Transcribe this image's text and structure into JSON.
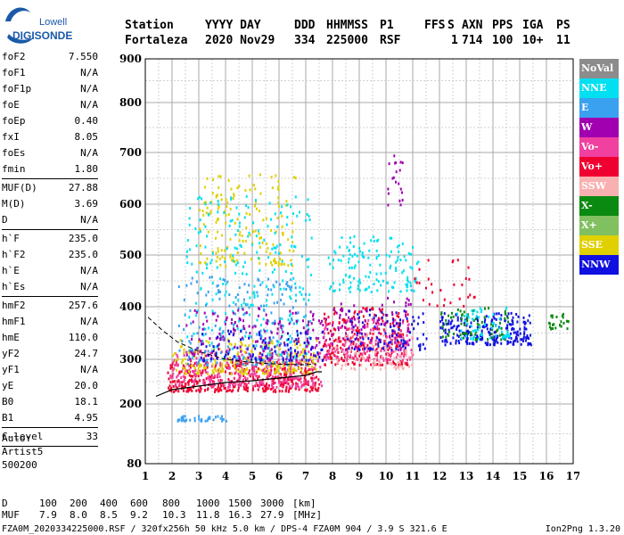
{
  "logo": {
    "line1": "Lowell",
    "line2": "DIGISONDE"
  },
  "header": {
    "row1": [
      "Station",
      "YYYY DAY",
      "DDD",
      "HHMMSS",
      "P1",
      "FFS",
      "S",
      "AXN",
      "PPS",
      "IGA",
      "PS"
    ],
    "row2": [
      "Fortaleza",
      "2020 Nov29",
      "334",
      "225000",
      "RSF",
      "1",
      "714",
      "100",
      "10+",
      "11"
    ]
  },
  "params": {
    "group1": [
      {
        "label": "foF2",
        "value": "7.550"
      },
      {
        "label": "foF1",
        "value": "N/A"
      },
      {
        "label": "foF1p",
        "value": "N/A"
      },
      {
        "label": "foE",
        "value": "N/A"
      },
      {
        "label": "foEp",
        "value": "0.40"
      },
      {
        "label": "fxI",
        "value": "8.05"
      },
      {
        "label": "foEs",
        "value": "N/A"
      },
      {
        "label": "fmin",
        "value": "1.80"
      }
    ],
    "group2": [
      {
        "label": "MUF(D)",
        "value": "27.88"
      },
      {
        "label": "M(D)",
        "value": "3.69"
      },
      {
        "label": "D",
        "value": "N/A"
      }
    ],
    "group3": [
      {
        "label": "h`F",
        "value": "235.0"
      },
      {
        "label": "h`F2",
        "value": "235.0"
      },
      {
        "label": "h`E",
        "value": "N/A"
      },
      {
        "label": "h`Es",
        "value": "N/A"
      }
    ],
    "group4": [
      {
        "label": "hmF2",
        "value": "257.6"
      },
      {
        "label": "hmF1",
        "value": "N/A"
      },
      {
        "label": "hmE",
        "value": "110.0"
      },
      {
        "label": "yF2",
        "value": "24.7"
      },
      {
        "label": "yF1",
        "value": "N/A"
      },
      {
        "label": "yE",
        "value": "20.0"
      },
      {
        "label": "B0",
        "value": "18.1"
      },
      {
        "label": "B1",
        "value": "4.95"
      }
    ],
    "group5": [
      {
        "label": "C-level",
        "value": "33"
      }
    ],
    "auto": [
      "Auto:",
      "Artist5",
      "500200"
    ]
  },
  "legend": [
    {
      "name": "NoVal",
      "color": "#8c8c8c"
    },
    {
      "name": "NNE",
      "color": "#00e0f0"
    },
    {
      "name": "E",
      "color": "#3aa0f0"
    },
    {
      "name": "W",
      "color": "#a000b0"
    },
    {
      "name": "Vo-",
      "color": "#f040a0"
    },
    {
      "name": "Vo+",
      "color": "#f00030"
    },
    {
      "name": "SSW",
      "color": "#f8b0b0"
    },
    {
      "name": "X-",
      "color": "#0a8a10"
    },
    {
      "name": "X+",
      "color": "#80c060"
    },
    {
      "name": "SSE",
      "color": "#e0d000"
    },
    {
      "name": "NNW",
      "color": "#1010e0"
    }
  ],
  "chart_data": {
    "type": "scatter",
    "title": "",
    "xlabel": "",
    "ylabel": "",
    "xlim": [
      1,
      17
    ],
    "ylim": [
      80,
      900
    ],
    "x_ticks": [
      "1",
      "2",
      "3",
      "4",
      "5",
      "6",
      "7",
      "8",
      "9",
      "10",
      "11",
      "12",
      "13",
      "14",
      "15",
      "16",
      "17"
    ],
    "y_ticks": [
      "80",
      "200",
      "300",
      "400",
      "500",
      "600",
      "700",
      "800",
      "900"
    ],
    "y_tick_values": [
      80,
      200,
      300,
      400,
      500,
      600,
      700,
      800,
      900
    ],
    "grid": true,
    "legend_position": "right",
    "clusters": [
      {
        "series": "Vo+",
        "x": [
          1.8,
          7.5
        ],
        "y": [
          230,
          300
        ],
        "density": 420
      },
      {
        "series": "Vo-",
        "x": [
          1.9,
          7.6
        ],
        "y": [
          240,
          320
        ],
        "density": 300
      },
      {
        "series": "SSE",
        "x": [
          2.0,
          7.4
        ],
        "y": [
          270,
          340
        ],
        "density": 220
      },
      {
        "series": "SSE",
        "x": [
          3.0,
          6.6
        ],
        "y": [
          480,
          660
        ],
        "density": 170
      },
      {
        "series": "NNE",
        "x": [
          2.5,
          7.2
        ],
        "y": [
          300,
          620
        ],
        "density": 260
      },
      {
        "series": "E",
        "x": [
          2.2,
          7.0
        ],
        "y": [
          290,
          460
        ],
        "density": 200
      },
      {
        "series": "W",
        "x": [
          2.5,
          7.8
        ],
        "y": [
          300,
          400
        ],
        "density": 180
      },
      {
        "series": "NNW",
        "x": [
          3.0,
          7.6
        ],
        "y": [
          300,
          360
        ],
        "density": 90
      },
      {
        "series": "NNE",
        "x": [
          7.8,
          11.2
        ],
        "y": [
          430,
          540
        ],
        "density": 140
      },
      {
        "series": "Vo+",
        "x": [
          7.6,
          10.8
        ],
        "y": [
          290,
          400
        ],
        "density": 260
      },
      {
        "series": "Vo-",
        "x": [
          7.6,
          11.0
        ],
        "y": [
          300,
          380
        ],
        "density": 160
      },
      {
        "series": "SSW",
        "x": [
          8.0,
          11.0
        ],
        "y": [
          280,
          350
        ],
        "density": 90
      },
      {
        "series": "W",
        "x": [
          7.8,
          11.0
        ],
        "y": [
          320,
          420
        ],
        "density": 90
      },
      {
        "series": "NNW",
        "x": [
          8.5,
          11.5
        ],
        "y": [
          320,
          400
        ],
        "density": 90
      },
      {
        "series": "NNW",
        "x": [
          12.0,
          15.4
        ],
        "y": [
          330,
          390
        ],
        "density": 230
      },
      {
        "series": "X-",
        "x": [
          12.0,
          14.6
        ],
        "y": [
          340,
          400
        ],
        "density": 70
      },
      {
        "series": "X-",
        "x": [
          16.0,
          16.8
        ],
        "y": [
          360,
          390
        ],
        "density": 25
      },
      {
        "series": "NNE",
        "x": [
          12.6,
          14.6
        ],
        "y": [
          340,
          400
        ],
        "density": 60
      },
      {
        "series": "Vo+",
        "x": [
          11.0,
          13.4
        ],
        "y": [
          400,
          500
        ],
        "density": 30
      },
      {
        "series": "W",
        "x": [
          10.0,
          10.6
        ],
        "y": [
          600,
          700
        ],
        "density": 20
      },
      {
        "series": "E",
        "x": [
          2.0,
          4.0
        ],
        "y": [
          168,
          178
        ],
        "density": 35
      }
    ],
    "o_trace": {
      "x": [
        1.4,
        2.0,
        3.0,
        4.0,
        5.0,
        6.0,
        7.0,
        7.4,
        7.6
      ],
      "y": [
        217,
        232,
        240,
        248,
        252,
        258,
        264,
        272,
        272
      ]
    },
    "x_trace": {
      "x": [
        1.1,
        1.6,
        2.2,
        3.0,
        4.0,
        5.0,
        6.0,
        7.0,
        7.4
      ],
      "y": [
        380,
        357,
        333,
        315,
        300,
        293,
        289,
        288,
        290
      ]
    }
  },
  "footer": {
    "d_label": "D",
    "d_values": [
      "100",
      "200",
      "400",
      "600",
      "800",
      "1000",
      "1500",
      "3000",
      "[km]"
    ],
    "muf_label": "MUF",
    "muf_values": [
      "7.9",
      "8.0",
      "8.5",
      "9.2",
      "10.3",
      "11.8",
      "16.3",
      "27.9",
      "[MHz]"
    ],
    "file_line": "FZA0M_2020334225000.RSF / 320fx256h 50 kHz 5.0 km / DPS-4 FZA0M 904 / 3.9 S 321.6 E",
    "software": "Ion2Png 1.3.20"
  }
}
